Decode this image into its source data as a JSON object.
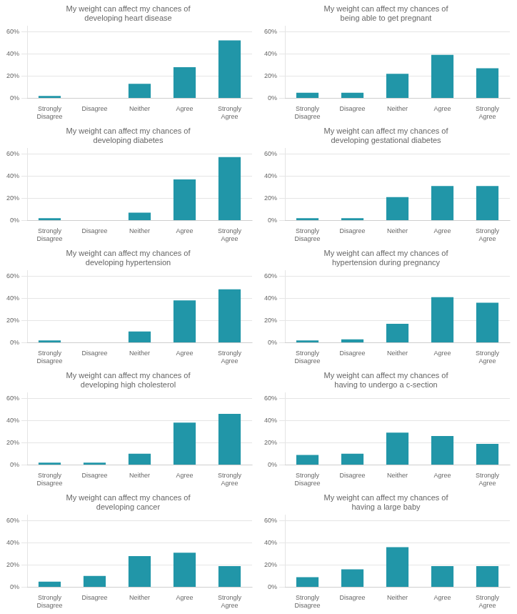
{
  "chart_data": [
    {
      "type": "bar",
      "title": "My weight can affect my chances of\ndeveloping heart disease",
      "categories": [
        "Strongly\nDisagree",
        "Disagree",
        "Neither",
        "Agree",
        "Strongly\nAgree"
      ],
      "values": [
        2,
        0,
        13,
        28,
        52
      ],
      "color": "#2196a8",
      "ylim": [
        0,
        65
      ],
      "yticks": [
        {
          "value": 0,
          "label": "0%"
        },
        {
          "value": 20,
          "label": "20%"
        },
        {
          "value": 40,
          "label": "40%"
        },
        {
          "value": 60,
          "label": "60%"
        }
      ],
      "grid": true
    },
    {
      "type": "bar",
      "title": "My weight can affect my chances of\nbeing able to get pregnant",
      "categories": [
        "Strongly\nDisagree",
        "Disagree",
        "Neither",
        "Agree",
        "Strongly\nAgree"
      ],
      "values": [
        5,
        5,
        22,
        39,
        27
      ],
      "color": "#2196a8",
      "ylim": [
        0,
        65
      ],
      "yticks": [
        {
          "value": 0,
          "label": "0%"
        },
        {
          "value": 20,
          "label": "20%"
        },
        {
          "value": 40,
          "label": "40%"
        },
        {
          "value": 60,
          "label": "60%"
        }
      ],
      "grid": true
    },
    {
      "type": "bar",
      "title": "My weight can affect my chances of\ndeveloping diabetes",
      "categories": [
        "Strongly\nDisagree",
        "Disagree",
        "Neither",
        "Agree",
        "Strongly\nAgree"
      ],
      "values": [
        2,
        0,
        7,
        37,
        57
      ],
      "color": "#2196a8",
      "ylim": [
        0,
        65
      ],
      "yticks": [
        {
          "value": 0,
          "label": "0%"
        },
        {
          "value": 20,
          "label": "20%"
        },
        {
          "value": 40,
          "label": "40%"
        },
        {
          "value": 60,
          "label": "60%"
        }
      ],
      "grid": true
    },
    {
      "type": "bar",
      "title": "My weight can affect my chances of\ndeveloping gestational diabetes",
      "categories": [
        "Strongly\nDisagree",
        "Disagree",
        "Neither",
        "Agree",
        "Strongly\nAgree"
      ],
      "values": [
        2,
        2,
        21,
        31,
        31
      ],
      "color": "#2196a8",
      "ylim": [
        0,
        65
      ],
      "yticks": [
        {
          "value": 0,
          "label": "0%"
        },
        {
          "value": 20,
          "label": "20%"
        },
        {
          "value": 40,
          "label": "40%"
        },
        {
          "value": 60,
          "label": "60%"
        }
      ],
      "grid": true
    },
    {
      "type": "bar",
      "title": "My weight can affect my chances of\ndeveloping hypertension",
      "categories": [
        "Strongly\nDisagree",
        "Disagree",
        "Neither",
        "Agree",
        "Strongly\nAgree"
      ],
      "values": [
        2,
        0,
        10,
        38,
        48
      ],
      "color": "#2196a8",
      "ylim": [
        0,
        65
      ],
      "yticks": [
        {
          "value": 0,
          "label": "0%"
        },
        {
          "value": 20,
          "label": "20%"
        },
        {
          "value": 40,
          "label": "40%"
        },
        {
          "value": 60,
          "label": "60%"
        }
      ],
      "grid": true
    },
    {
      "type": "bar",
      "title": "My weight can affect my chances of\nhypertension during pregnancy",
      "categories": [
        "Strongly\nDisagree",
        "Disagree",
        "Neither",
        "Agree",
        "Strongly\nAgree"
      ],
      "values": [
        2,
        3,
        17,
        41,
        36
      ],
      "color": "#2196a8",
      "ylim": [
        0,
        65
      ],
      "yticks": [
        {
          "value": 0,
          "label": "0%"
        },
        {
          "value": 20,
          "label": "20%"
        },
        {
          "value": 40,
          "label": "40%"
        },
        {
          "value": 60,
          "label": "60%"
        }
      ],
      "grid": true
    },
    {
      "type": "bar",
      "title": "My weight can affect my chances of\ndeveloping high cholesterol",
      "categories": [
        "Strongly\nDisagree",
        "Disagree",
        "Neither",
        "Agree",
        "Strongly\nAgree"
      ],
      "values": [
        2,
        2,
        10,
        38,
        46
      ],
      "color": "#2196a8",
      "ylim": [
        0,
        65
      ],
      "yticks": [
        {
          "value": 0,
          "label": "0%"
        },
        {
          "value": 20,
          "label": "20%"
        },
        {
          "value": 40,
          "label": "40%"
        },
        {
          "value": 60,
          "label": "60%"
        }
      ],
      "grid": true
    },
    {
      "type": "bar",
      "title": "My weight can affect my chances of\nhaving to undergo a c-section",
      "categories": [
        "Strongly\nDisagree",
        "Disagree",
        "Neither",
        "Agree",
        "Strongly\nAgree"
      ],
      "values": [
        9,
        10,
        29,
        26,
        19
      ],
      "color": "#2196a8",
      "ylim": [
        0,
        65
      ],
      "yticks": [
        {
          "value": 0,
          "label": "0%"
        },
        {
          "value": 20,
          "label": "20%"
        },
        {
          "value": 40,
          "label": "40%"
        },
        {
          "value": 60,
          "label": "60%"
        }
      ],
      "grid": true
    },
    {
      "type": "bar",
      "title": "My weight can affect my chances of\ndeveloping cancer",
      "categories": [
        "Strongly\nDisagree",
        "Disagree",
        "Neither",
        "Agree",
        "Strongly\nAgree"
      ],
      "values": [
        5,
        10,
        28,
        31,
        19
      ],
      "color": "#2196a8",
      "ylim": [
        0,
        65
      ],
      "yticks": [
        {
          "value": 0,
          "label": "0%"
        },
        {
          "value": 20,
          "label": "20%"
        },
        {
          "value": 40,
          "label": "40%"
        },
        {
          "value": 60,
          "label": "60%"
        }
      ],
      "grid": true
    },
    {
      "type": "bar",
      "title": "My weight can affect my chances of\nhaving a large baby",
      "categories": [
        "Strongly\nDisagree",
        "Disagree",
        "Neither",
        "Agree",
        "Strongly\nAgree"
      ],
      "values": [
        9,
        16,
        36,
        19,
        19
      ],
      "color": "#2196a8",
      "ylim": [
        0,
        65
      ],
      "yticks": [
        {
          "value": 0,
          "label": "0%"
        },
        {
          "value": 20,
          "label": "20%"
        },
        {
          "value": 40,
          "label": "40%"
        },
        {
          "value": 60,
          "label": "60%"
        }
      ],
      "grid": true
    }
  ]
}
